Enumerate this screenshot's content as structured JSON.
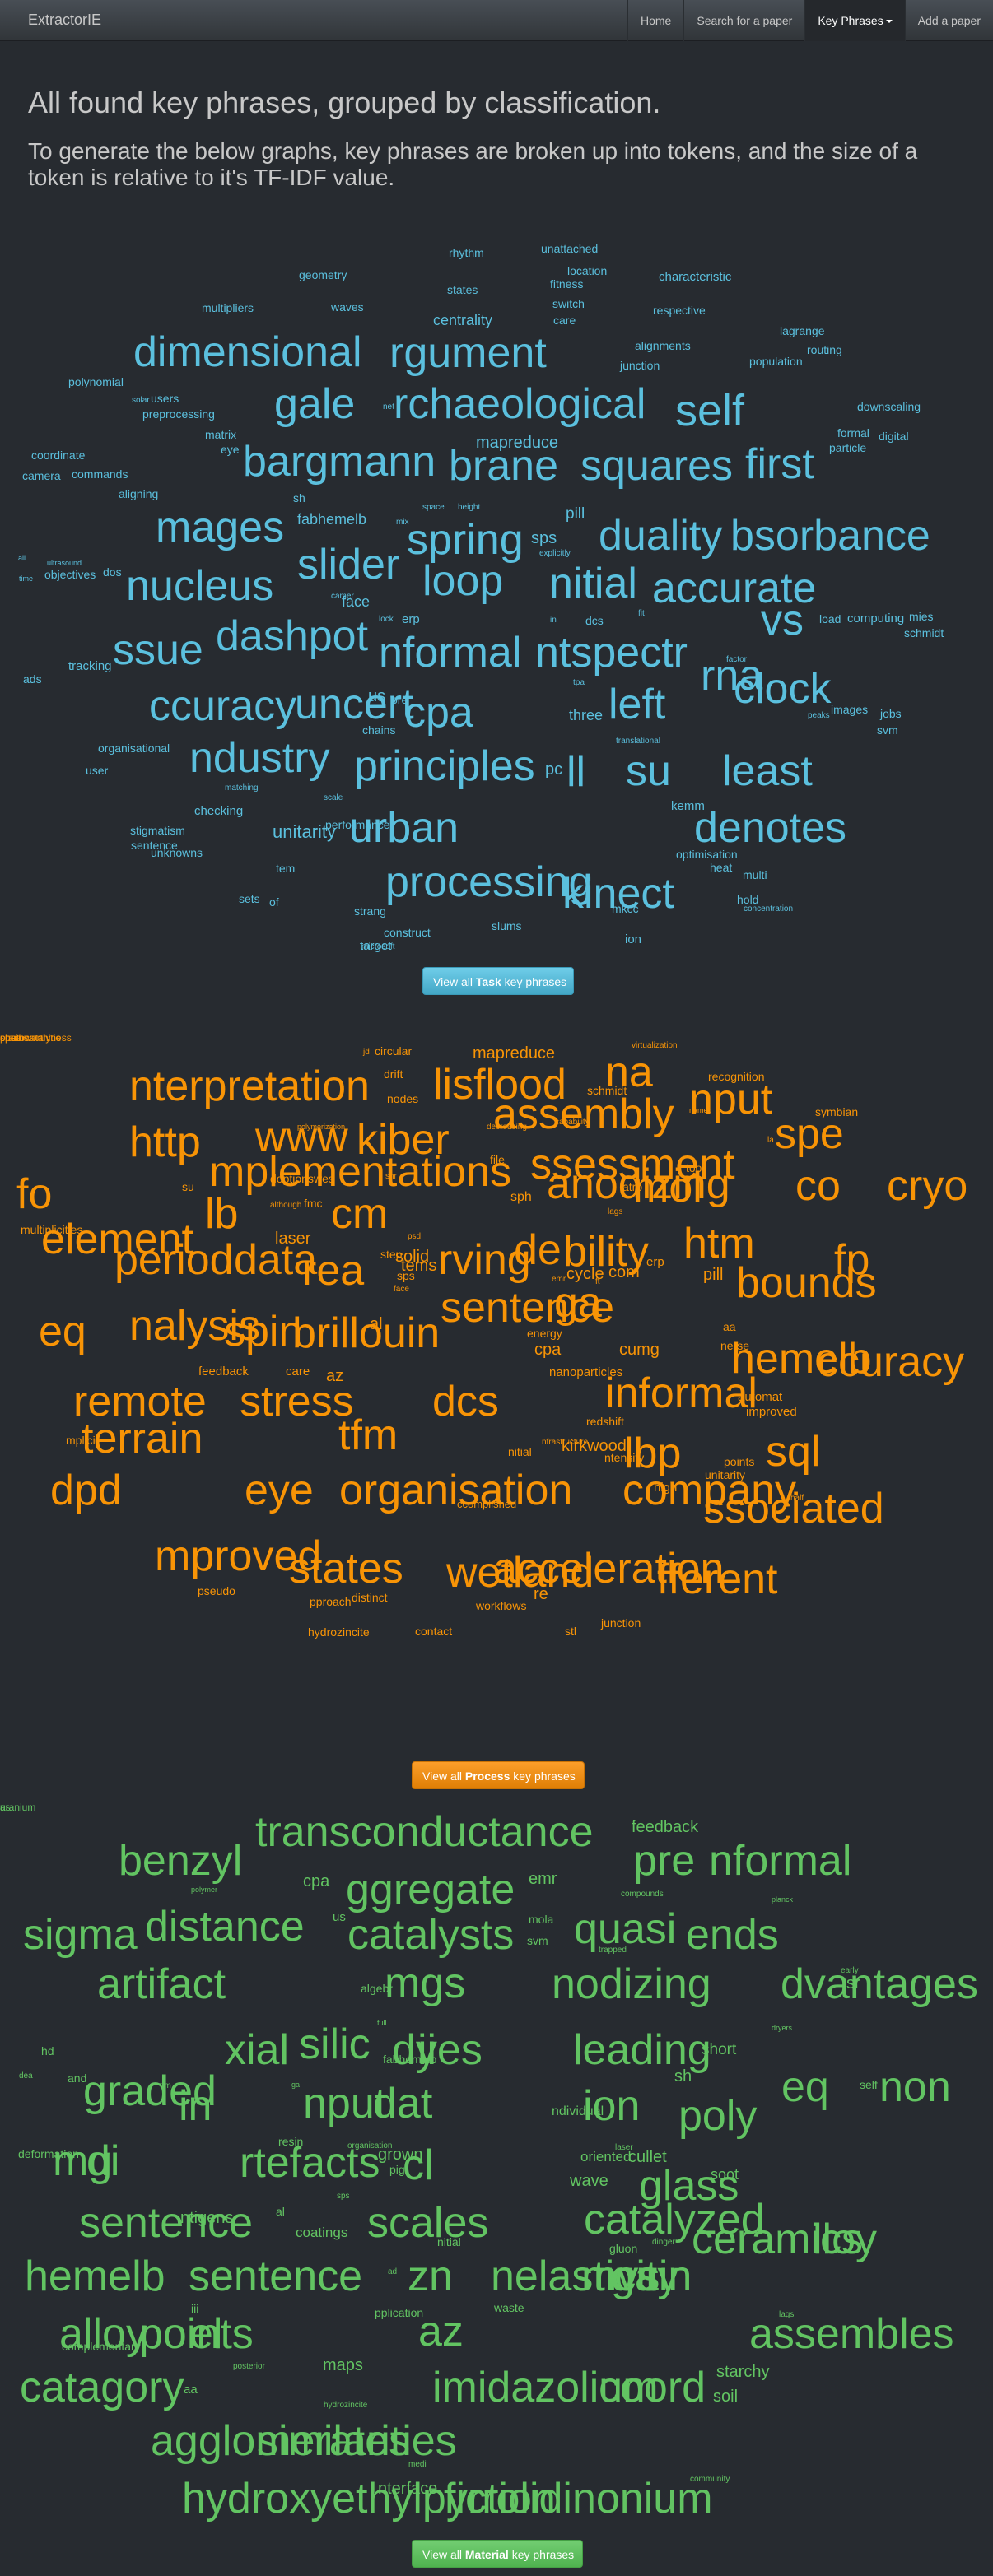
{
  "nav": {
    "brand": "ExtractorIE",
    "home": "Home",
    "search": "Search for a paper",
    "key_phrases": "Key Phrases",
    "add": "Add a paper"
  },
  "header": {
    "title": "All found key phrases, grouped by classification.",
    "subtitle": "To generate the below graphs, key phrases are broken up into tokens, and the size of a token is relative to it's TF-IDF value."
  },
  "task_button": {
    "prefix": "View all ",
    "bold": "Task",
    "suffix": " key phrases"
  },
  "process_button": {
    "prefix": "View all ",
    "bold": "Process",
    "suffix": " key phrases"
  },
  "material_button": {
    "prefix": "View all ",
    "bold": "Material",
    "suffix": " key phrases"
  },
  "task_words": [
    "rhythm",
    "unattached",
    "geometry",
    "states",
    "location",
    "fitness",
    "characteristic",
    "multipliers",
    "waves",
    "switch",
    "respective",
    "centrality",
    "care",
    "lagrange",
    "alignments",
    "routing",
    "junction",
    "population",
    "dimensional",
    "rgument",
    "polynomial",
    "solar",
    "users",
    "gale",
    "rchaeological",
    "self",
    "downscaling",
    "preprocessing",
    "net",
    "formal",
    "digital",
    "matrix",
    "mapreduce",
    "particle",
    "eye",
    "coordinate",
    "bargmann",
    "brane",
    "squares",
    "first",
    "camera",
    "commands",
    "aligning",
    "sh",
    "pill",
    "fabhemelb",
    "mix",
    "space",
    "height",
    "mages",
    "spring",
    "sps",
    "duality",
    "bsorbance",
    "explicitly",
    "ultrasound",
    "all",
    "objectives",
    "dos",
    "slider",
    "time",
    "nucleus",
    "camer",
    "loop",
    "nitial",
    "accurate",
    "face",
    "erp",
    "lock",
    "vs",
    "load",
    "computing",
    "mies",
    "schmidt",
    "in",
    "dcs",
    "fit",
    "dashpot",
    "ssue",
    "nformal",
    "ntspectr",
    "rna",
    "factor",
    "tracking",
    "ads",
    "clock",
    "tpa",
    "us",
    "pre",
    "uncert",
    "ccuracy",
    "cpa",
    "three",
    "left",
    "peaks",
    "images",
    "svm",
    "chains",
    "jobs",
    "organisational",
    "translational",
    "ndustry",
    "principles",
    "pc",
    "ll",
    "su",
    "least",
    "user",
    "matching",
    "scale",
    "kemm",
    "checking",
    "urban",
    "denotes",
    "stigmatism",
    "unitarity",
    "performance",
    "sentence",
    "unknowns",
    "optimisation",
    "tem",
    "heat",
    "processing",
    "multi",
    "kinect",
    "hold",
    "sets",
    "of",
    "concentration",
    "strang",
    "mkcc",
    "slums",
    "construct",
    "target",
    "ion",
    "microsoft"
  ],
  "process_words": [
    "jd",
    "circular",
    "mapreduce",
    "virtualization",
    "na",
    "nterpretation",
    "drift",
    "lisflood",
    "recognition",
    "schmidt",
    "nodes",
    "nput",
    "assembly",
    "http",
    "www",
    "kiber",
    "named",
    "symbian",
    "capability",
    "polymerization",
    "decreasing",
    "spe",
    "la",
    "mplementations",
    "ssessment",
    "file",
    "fo",
    "doption",
    "swes",
    "snr",
    "tool",
    "anodizing",
    "mol",
    "co",
    "cryo",
    "su",
    "atrp",
    "lb",
    "cm",
    "although",
    "fmc",
    "sph",
    "laser",
    "psd",
    "lags",
    "multiplicities",
    "element",
    "period",
    "data",
    "rea",
    "rving",
    "de",
    "bility",
    "htm",
    "fp",
    "step",
    "solid",
    "tems",
    "erp",
    "pill",
    "emr",
    "bounds",
    "sps",
    "cycle",
    "com",
    "ft",
    "face",
    "sentence",
    "ga",
    "eq",
    "brillouin",
    "nalysis",
    "spin",
    "al",
    "aa",
    "energy",
    "cpa",
    "nerse",
    "hemelb",
    "ccuracy",
    "feedback",
    "care",
    "az",
    "cumg",
    "nanoparticles",
    "remote",
    "stress",
    "dcs",
    "informal",
    "automat",
    "improved",
    "redshift",
    "mplicit",
    "terrain",
    "tfm",
    "lbp",
    "sql",
    "nfrastructure",
    "kirkwood",
    "nitial",
    "ntensity",
    "points",
    "unitarity",
    "dpd",
    "eye",
    "organisation",
    "company",
    "ssociated",
    "high",
    "ccomplished",
    "half",
    "mproved",
    "states",
    "wetland",
    "acceleration",
    "fferent",
    "pseudo",
    "re",
    "pproach",
    "distinct",
    "workflows",
    "hydrozincite",
    "contact",
    "stl",
    "junction",
    "crashworthiness",
    "photocatalytic",
    "chains",
    "spea"
  ],
  "material_words": [
    "transconductance",
    "feedback",
    "benzyl",
    "pre",
    "nformal",
    "cpa",
    "ggregate",
    "emr",
    "polymer",
    "compounds",
    "planck",
    "distance",
    "sigma",
    "us",
    "mola",
    "catalysts",
    "quasi",
    "ends",
    "svm",
    "trapped",
    "early",
    "sr",
    "artifact",
    "algebr",
    "mgs",
    "nodizing",
    "dvantages",
    "full",
    "dryers",
    "hd",
    "silic",
    "xial",
    "dyes",
    "ii",
    "leading",
    "short",
    "fabhemelb",
    "sh",
    "graded",
    "dea",
    "and",
    "tfm",
    "eq",
    "non",
    "self",
    "ga",
    "in",
    "nput",
    "dat",
    "ndividual",
    "ion",
    "poly",
    "resin",
    "organisation",
    "laser",
    "deformation",
    "mg",
    "di",
    "rtefacts",
    "grown",
    "pig",
    "cl",
    "oriented",
    "cullet",
    "soot",
    "wave",
    "glass",
    "sps",
    "ntigens",
    "al",
    "scales",
    "sentence",
    "coatings",
    "catalyzed",
    "nitial",
    "ceramics",
    "lloy",
    "gluon",
    "dinger",
    "hemelb",
    "sentence",
    "ad",
    "zn",
    "nelasticity",
    "mvs",
    "gain",
    "iii",
    "pplication",
    "waste",
    "lags",
    "alloy",
    "points",
    "el",
    "az",
    "assembles",
    "complementary",
    "posterior",
    "maps",
    "catagory",
    "imidazolium",
    "coord",
    "starchy",
    "aa",
    "soil",
    "hydrozincite",
    "agglomerates",
    "similarities",
    "medi",
    "hydroxyethylpyrrolidinonium",
    "fiction",
    "nterface",
    "community",
    "uranium",
    "as"
  ],
  "colors": {
    "background": "#272b30",
    "task": "#5bc0de",
    "process": "#f89406",
    "material": "#62c462"
  }
}
